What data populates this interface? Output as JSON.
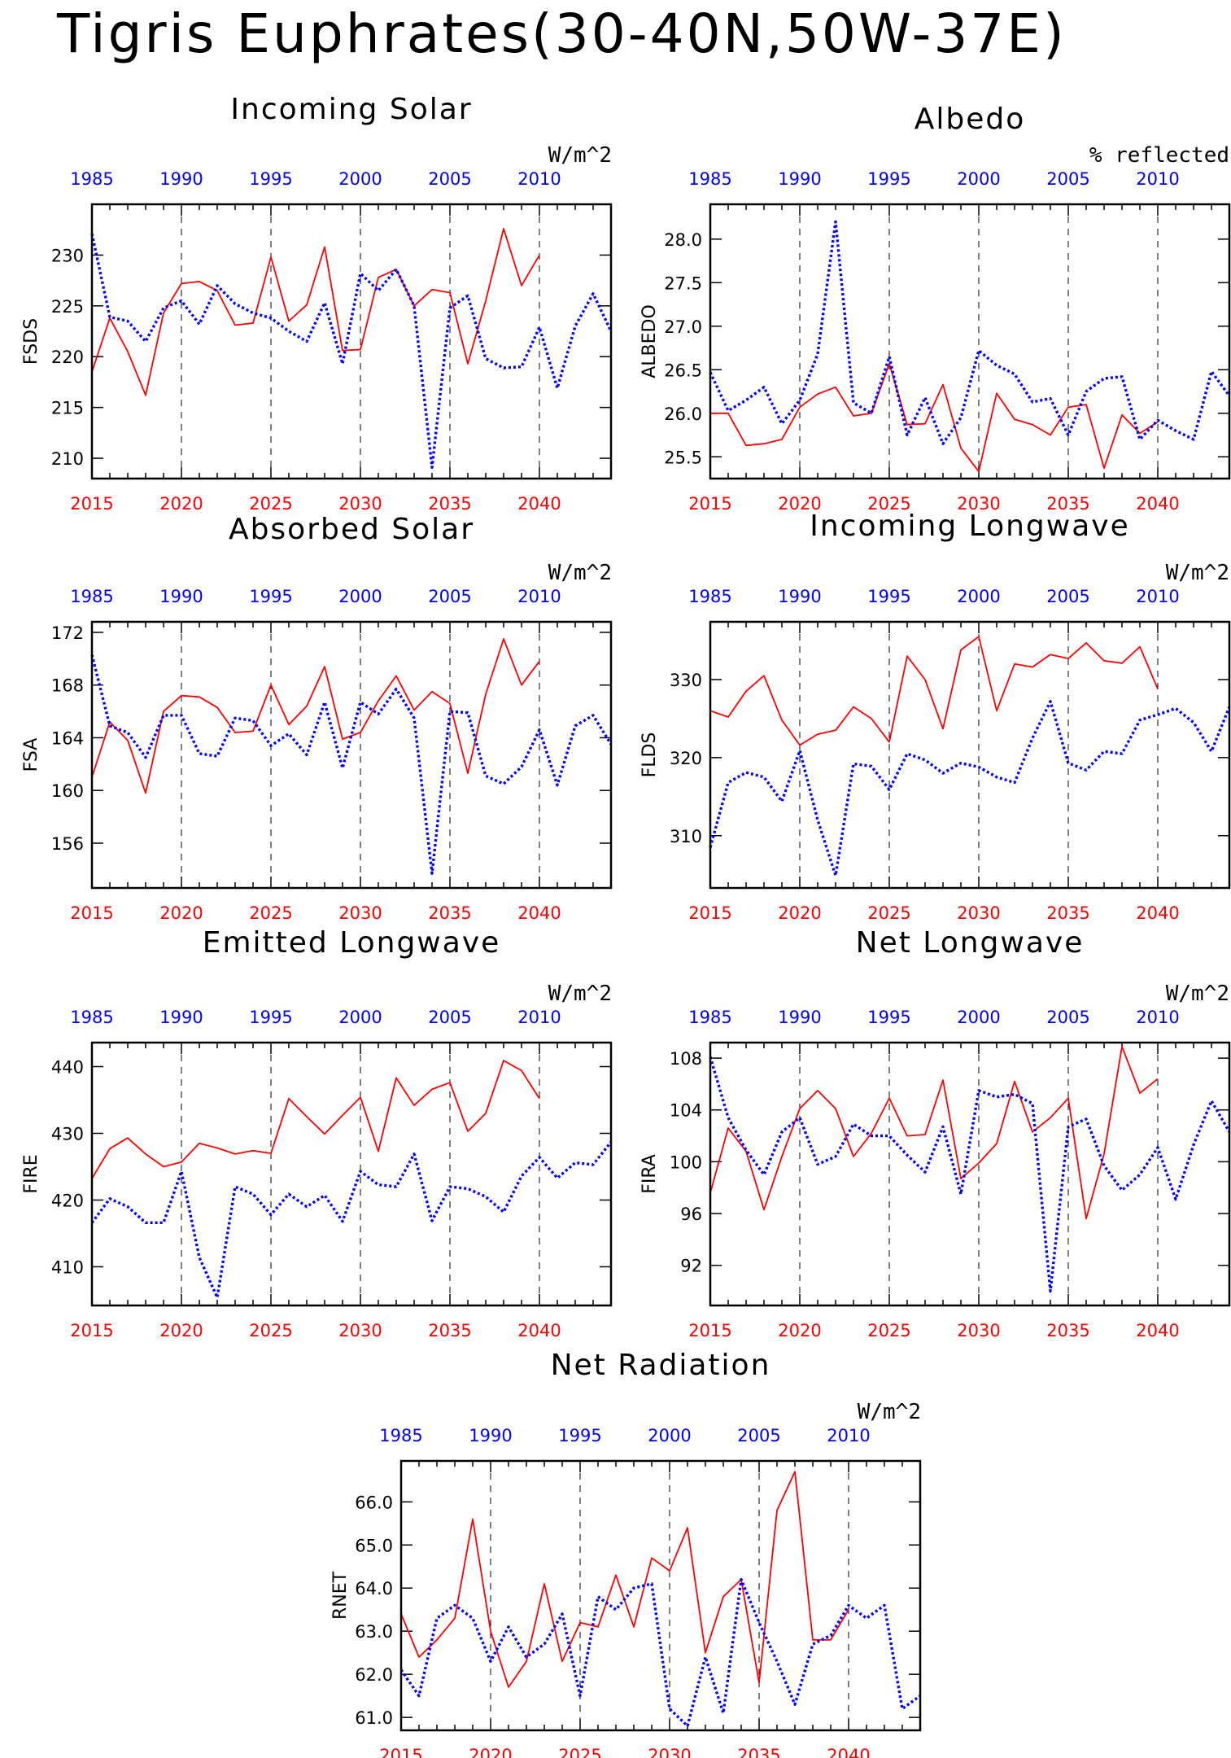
{
  "page": {
    "title": "Tigris Euphrates(30-40N,50W-37E)"
  },
  "colors": {
    "red_series": "#ff0000",
    "blue_series": "#0000ff",
    "text": "#000000"
  },
  "chart_data": [
    {
      "type": "line",
      "title": "Incoming Solar",
      "units": "W/m^2",
      "ylabel": "FSDS",
      "ylim": [
        208,
        235
      ],
      "yticks": [
        210,
        215,
        220,
        225,
        230
      ],
      "x_red": [
        2015,
        2016,
        2017,
        2018,
        2019,
        2020,
        2021,
        2022,
        2023,
        2024,
        2025,
        2026,
        2027,
        2028,
        2029,
        2030,
        2031,
        2032,
        2033,
        2034,
        2035,
        2036,
        2037,
        2038,
        2039,
        2040
      ],
      "x_blue": [
        1985,
        1986,
        1987,
        1988,
        1989,
        1990,
        1991,
        1992,
        1993,
        1994,
        1995,
        1996,
        1997,
        1998,
        1999,
        2000,
        2001,
        2002,
        2003,
        2004,
        2005,
        2006,
        2007,
        2008,
        2009,
        2010,
        2011,
        2012,
        2013,
        2014
      ],
      "series": [
        {
          "color": "red",
          "values": [
            218.5,
            223.8,
            220.5,
            216.2,
            224.3,
            227.2,
            227.4,
            226.5,
            223.1,
            223.3,
            229.8,
            223.5,
            225.1,
            230.8,
            220.6,
            220.7,
            227.8,
            228.6,
            225.0,
            226.6,
            226.3,
            219.3,
            225.5,
            232.6,
            227.0,
            230.0
          ]
        },
        {
          "color": "blue",
          "values": [
            232.1,
            223.9,
            223.5,
            221.5,
            224.8,
            225.5,
            223.2,
            227.0,
            225.2,
            224.3,
            223.8,
            222.5,
            221.5,
            225.3,
            219.3,
            228.2,
            226.5,
            228.6,
            225.0,
            209.1,
            224.8,
            226.0,
            219.8,
            218.9,
            219.0,
            222.9,
            216.9,
            223.0,
            226.2,
            222.5
          ]
        }
      ]
    },
    {
      "type": "line",
      "title": "Albedo",
      "units": "% reflected",
      "ylabel": "ALBEDO",
      "ylim": [
        25.25,
        28.4
      ],
      "yticks": [
        25.5,
        26.0,
        26.5,
        27.0,
        27.5,
        28.0
      ],
      "x_red": [
        2015,
        2016,
        2017,
        2018,
        2019,
        2020,
        2021,
        2022,
        2023,
        2024,
        2025,
        2026,
        2027,
        2028,
        2029,
        2030,
        2031,
        2032,
        2033,
        2034,
        2035,
        2036,
        2037,
        2038,
        2039,
        2040
      ],
      "x_blue": [
        1985,
        1986,
        1987,
        1988,
        1989,
        1990,
        1991,
        1992,
        1993,
        1994,
        1995,
        1996,
        1997,
        1998,
        1999,
        2000,
        2001,
        2002,
        2003,
        2004,
        2005,
        2006,
        2007,
        2008,
        2009,
        2010,
        2011,
        2012,
        2013,
        2014
      ],
      "series": [
        {
          "color": "red",
          "values": [
            26.0,
            26.0,
            25.63,
            25.65,
            25.7,
            26.07,
            26.22,
            26.3,
            25.97,
            26.0,
            26.57,
            25.87,
            25.88,
            26.33,
            25.6,
            25.33,
            26.23,
            25.93,
            25.87,
            25.75,
            26.07,
            26.1,
            25.37,
            25.98,
            25.77,
            25.9
          ]
        },
        {
          "color": "blue",
          "values": [
            26.47,
            26.03,
            26.15,
            26.3,
            25.88,
            26.15,
            26.68,
            28.2,
            26.12,
            26.0,
            26.65,
            25.75,
            26.18,
            25.65,
            25.95,
            26.72,
            26.55,
            26.45,
            26.13,
            26.17,
            25.75,
            26.25,
            26.4,
            26.42,
            25.7,
            25.92,
            25.8,
            25.7,
            26.48,
            26.2
          ]
        }
      ]
    },
    {
      "type": "line",
      "title": "Absorbed Solar",
      "units": "W/m^2",
      "ylabel": "FSA",
      "ylim": [
        152.6,
        172.8
      ],
      "yticks": [
        156,
        160,
        164,
        168,
        172
      ],
      "x_red": [
        2015,
        2016,
        2017,
        2018,
        2019,
        2020,
        2021,
        2022,
        2023,
        2024,
        2025,
        2026,
        2027,
        2028,
        2029,
        2030,
        2031,
        2032,
        2033,
        2034,
        2035,
        2036,
        2037,
        2038,
        2039,
        2040
      ],
      "x_blue": [
        1985,
        1986,
        1987,
        1988,
        1989,
        1990,
        1991,
        1992,
        1993,
        1994,
        1995,
        1996,
        1997,
        1998,
        1999,
        2000,
        2001,
        2002,
        2003,
        2004,
        2005,
        2006,
        2007,
        2008,
        2009,
        2010,
        2011,
        2012,
        2013,
        2014
      ],
      "series": [
        {
          "color": "red",
          "values": [
            161.0,
            165.2,
            163.8,
            159.8,
            166.0,
            167.2,
            167.1,
            166.3,
            164.4,
            164.5,
            168.0,
            165.0,
            166.4,
            169.4,
            163.9,
            164.4,
            166.8,
            168.7,
            166.1,
            167.5,
            166.6,
            161.3,
            167.3,
            171.5,
            168.0,
            169.8
          ]
        },
        {
          "color": "blue",
          "values": [
            170.3,
            164.9,
            164.4,
            162.5,
            165.7,
            165.7,
            162.8,
            162.6,
            165.5,
            165.3,
            163.4,
            164.3,
            162.7,
            166.7,
            161.7,
            166.7,
            165.8,
            167.7,
            165.5,
            153.7,
            166.0,
            165.9,
            161.1,
            160.5,
            161.8,
            164.6,
            160.4,
            164.9,
            165.7,
            163.5
          ]
        }
      ]
    },
    {
      "type": "line",
      "title": "Incoming Longwave",
      "units": "W/m^2",
      "ylabel": "FLDS",
      "ylim": [
        303.3,
        337.4
      ],
      "yticks": [
        310,
        320,
        330
      ],
      "x_red": [
        2015,
        2016,
        2017,
        2018,
        2019,
        2020,
        2021,
        2022,
        2023,
        2024,
        2025,
        2026,
        2027,
        2028,
        2029,
        2030,
        2031,
        2032,
        2033,
        2034,
        2035,
        2036,
        2037,
        2038,
        2039,
        2040
      ],
      "x_blue": [
        1985,
        1986,
        1987,
        1988,
        1989,
        1990,
        1991,
        1992,
        1993,
        1994,
        1995,
        1996,
        1997,
        1998,
        1999,
        2000,
        2001,
        2002,
        2003,
        2004,
        2005,
        2006,
        2007,
        2008,
        2009,
        2010,
        2011,
        2012,
        2013,
        2014
      ],
      "series": [
        {
          "color": "red",
          "values": [
            326.0,
            325.2,
            328.5,
            330.5,
            324.8,
            321.6,
            323.0,
            323.5,
            326.5,
            325.0,
            322.0,
            333.0,
            330.0,
            323.7,
            333.8,
            335.5,
            326.0,
            332.0,
            331.6,
            333.2,
            332.7,
            334.7,
            332.4,
            332.1,
            334.2,
            328.8
          ]
        },
        {
          "color": "blue",
          "values": [
            308.5,
            316.8,
            318.1,
            317.5,
            314.4,
            320.9,
            312.0,
            304.9,
            319.2,
            318.9,
            315.9,
            320.5,
            319.7,
            318.0,
            319.3,
            318.8,
            317.5,
            316.8,
            322.5,
            327.2,
            319.3,
            318.4,
            320.8,
            320.5,
            324.8,
            325.5,
            326.3,
            324.5,
            320.8,
            326.5
          ]
        }
      ]
    },
    {
      "type": "line",
      "title": "Emitted Longwave",
      "units": "W/m^2",
      "ylabel": "FIRE",
      "ylim": [
        404.2,
        443.6
      ],
      "yticks": [
        410,
        420,
        430,
        440
      ],
      "x_red": [
        2015,
        2016,
        2017,
        2018,
        2019,
        2020,
        2021,
        2022,
        2023,
        2024,
        2025,
        2026,
        2027,
        2028,
        2029,
        2030,
        2031,
        2032,
        2033,
        2034,
        2035,
        2036,
        2037,
        2038,
        2039,
        2040
      ],
      "x_blue": [
        1985,
        1986,
        1987,
        1988,
        1989,
        1990,
        1991,
        1992,
        1993,
        1994,
        1995,
        1996,
        1997,
        1998,
        1999,
        2000,
        2001,
        2002,
        2003,
        2004,
        2005,
        2006,
        2007,
        2008,
        2009,
        2010,
        2011,
        2012,
        2013,
        2014
      ],
      "series": [
        {
          "color": "red",
          "values": [
            423.2,
            427.7,
            429.3,
            426.9,
            425.0,
            425.7,
            428.5,
            427.8,
            426.9,
            427.4,
            427.0,
            435.2,
            432.5,
            429.9,
            432.7,
            435.4,
            427.3,
            438.3,
            434.2,
            436.6,
            437.6,
            430.3,
            433.0,
            440.9,
            439.4,
            435.2
          ]
        },
        {
          "color": "blue",
          "values": [
            416.6,
            420.2,
            419.0,
            416.6,
            416.6,
            424.3,
            411.4,
            405.4,
            422.0,
            420.9,
            417.8,
            420.9,
            419.0,
            420.7,
            416.8,
            424.3,
            422.3,
            422.0,
            426.9,
            416.9,
            422.0,
            421.7,
            420.5,
            418.2,
            423.6,
            426.4,
            423.3,
            425.6,
            425.3,
            428.7
          ]
        }
      ]
    },
    {
      "type": "line",
      "title": "Net Longwave",
      "units": "W/m^2",
      "ylabel": "FIRA",
      "ylim": [
        88.9,
        109.2
      ],
      "yticks": [
        92,
        96,
        100,
        104,
        108
      ],
      "x_red": [
        2015,
        2016,
        2017,
        2018,
        2019,
        2020,
        2021,
        2022,
        2023,
        2024,
        2025,
        2026,
        2027,
        2028,
        2029,
        2030,
        2031,
        2032,
        2033,
        2034,
        2035,
        2036,
        2037,
        2038,
        2039,
        2040
      ],
      "x_blue": [
        1985,
        1986,
        1987,
        1988,
        1989,
        1990,
        1991,
        1992,
        1993,
        1994,
        1995,
        1996,
        1997,
        1998,
        1999,
        2000,
        2001,
        2002,
        2003,
        2004,
        2005,
        2006,
        2007,
        2008,
        2009,
        2010,
        2011,
        2012,
        2013,
        2014
      ],
      "series": [
        {
          "color": "red",
          "values": [
            97.6,
            102.6,
            100.8,
            96.3,
            100.4,
            104.1,
            105.5,
            104.1,
            100.4,
            102.2,
            104.9,
            102.0,
            102.1,
            106.3,
            98.7,
            99.9,
            101.4,
            106.2,
            102.3,
            103.4,
            104.9,
            95.6,
            100.6,
            108.9,
            105.3,
            106.4
          ]
        },
        {
          "color": "blue",
          "values": [
            108.1,
            103.4,
            100.9,
            99.0,
            102.3,
            103.4,
            99.8,
            100.4,
            102.9,
            102.0,
            102.0,
            100.5,
            99.2,
            102.7,
            97.5,
            105.5,
            105.0,
            105.2,
            104.5,
            90.0,
            102.7,
            103.3,
            99.7,
            97.8,
            99.0,
            101.1,
            97.1,
            101.3,
            104.7,
            102.3
          ]
        }
      ]
    },
    {
      "type": "line",
      "title": "Net Radiation",
      "units": "W/m^2",
      "ylabel": "RNET",
      "ylim": [
        60.7,
        66.95
      ],
      "yticks": [
        61.0,
        62.0,
        63.0,
        64.0,
        65.0,
        66.0
      ],
      "x_red": [
        2015,
        2016,
        2017,
        2018,
        2019,
        2020,
        2021,
        2022,
        2023,
        2024,
        2025,
        2026,
        2027,
        2028,
        2029,
        2030,
        2031,
        2032,
        2033,
        2034,
        2035,
        2036,
        2037,
        2038,
        2039,
        2040
      ],
      "x_blue": [
        1985,
        1986,
        1987,
        1988,
        1989,
        1990,
        1991,
        1992,
        1993,
        1994,
        1995,
        1996,
        1997,
        1998,
        1999,
        2000,
        2001,
        2002,
        2003,
        2004,
        2005,
        2006,
        2007,
        2008,
        2009,
        2010,
        2011,
        2012,
        2013,
        2014
      ],
      "series": [
        {
          "color": "red",
          "values": [
            63.4,
            62.4,
            62.8,
            63.3,
            65.6,
            63.0,
            61.7,
            62.3,
            64.1,
            62.3,
            63.2,
            63.1,
            64.3,
            63.1,
            64.7,
            64.4,
            65.4,
            62.5,
            63.8,
            64.2,
            61.8,
            65.8,
            66.7,
            62.8,
            62.8,
            63.5
          ]
        },
        {
          "color": "blue",
          "values": [
            62.1,
            61.5,
            63.3,
            63.6,
            63.3,
            62.3,
            63.1,
            62.4,
            62.7,
            63.4,
            61.5,
            63.8,
            63.5,
            64.0,
            64.1,
            61.2,
            60.8,
            62.4,
            61.1,
            64.2,
            63.2,
            62.3,
            61.3,
            62.7,
            62.9,
            63.6,
            63.3,
            63.6,
            61.2,
            61.5
          ]
        }
      ]
    }
  ],
  "axes": {
    "bottom_ticks": [
      "2015",
      "2020",
      "2025",
      "2030",
      "2035",
      "2040"
    ],
    "top_ticks": [
      "1985",
      "1990",
      "1995",
      "2000",
      "2005",
      "2010"
    ]
  }
}
